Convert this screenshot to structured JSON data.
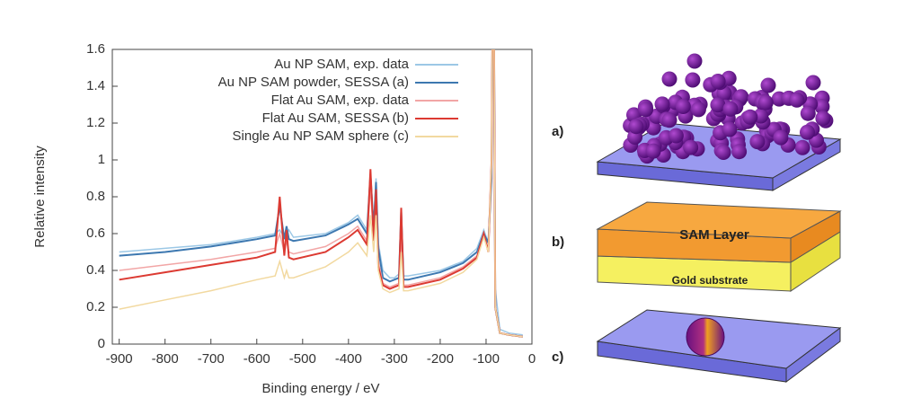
{
  "chart_data": {
    "type": "line",
    "xlabel": "Binding energy / eV",
    "ylabel": "Relative intensity",
    "x": [
      -900,
      -800,
      -700,
      -600,
      -560,
      -550,
      -540,
      -535,
      -530,
      -520,
      -450,
      -400,
      -380,
      -360,
      -352,
      -345,
      -340,
      -335,
      -325,
      -310,
      -300,
      -290,
      -285,
      -280,
      -270,
      -200,
      -150,
      -120,
      -105,
      -95,
      -88,
      -84,
      -80,
      -70,
      -50,
      -20
    ],
    "series": [
      {
        "name": "Au NP SAM, exp. data",
        "color": "#9cc8e6",
        "values": [
          0.5,
          0.52,
          0.54,
          0.58,
          0.6,
          0.62,
          0.58,
          0.6,
          0.62,
          0.58,
          0.6,
          0.66,
          0.7,
          0.62,
          0.85,
          0.65,
          0.9,
          0.55,
          0.4,
          0.36,
          0.36,
          0.38,
          0.5,
          0.37,
          0.37,
          0.4,
          0.45,
          0.52,
          0.62,
          0.55,
          1.0,
          2.0,
          0.3,
          0.08,
          0.06,
          0.05
        ]
      },
      {
        "name": "Au NP SAM powder, SESSA (a)",
        "color": "#3d78b0",
        "values": [
          0.48,
          0.5,
          0.53,
          0.57,
          0.59,
          0.75,
          0.57,
          0.64,
          0.57,
          0.56,
          0.59,
          0.65,
          0.68,
          0.6,
          0.92,
          0.63,
          0.88,
          0.52,
          0.36,
          0.34,
          0.35,
          0.36,
          0.72,
          0.35,
          0.35,
          0.39,
          0.44,
          0.5,
          0.6,
          0.55,
          0.9,
          2.5,
          0.2,
          0.06,
          0.05,
          0.04
        ]
      },
      {
        "name": "Flat Au SAM, exp. data",
        "color": "#f2a6a6",
        "values": [
          0.4,
          0.43,
          0.46,
          0.5,
          0.52,
          0.6,
          0.5,
          0.56,
          0.5,
          0.49,
          0.53,
          0.6,
          0.64,
          0.56,
          0.85,
          0.58,
          0.8,
          0.45,
          0.33,
          0.31,
          0.32,
          0.33,
          0.6,
          0.32,
          0.32,
          0.36,
          0.42,
          0.48,
          0.6,
          0.5,
          1.0,
          2.5,
          0.2,
          0.06,
          0.05,
          0.04
        ]
      },
      {
        "name": "Flat Au SAM, SESSA (b)",
        "color": "#dc3a32",
        "values": [
          0.35,
          0.39,
          0.43,
          0.47,
          0.5,
          0.8,
          0.48,
          0.62,
          0.47,
          0.46,
          0.5,
          0.58,
          0.62,
          0.54,
          0.95,
          0.56,
          0.84,
          0.42,
          0.32,
          0.3,
          0.31,
          0.32,
          0.74,
          0.31,
          0.31,
          0.35,
          0.41,
          0.47,
          0.6,
          0.5,
          1.0,
          2.5,
          0.2,
          0.06,
          0.05,
          0.04
        ]
      },
      {
        "name": "Single Au NP SAM sphere (c)",
        "color": "#f2d9a0",
        "values": [
          0.19,
          0.24,
          0.29,
          0.35,
          0.37,
          0.45,
          0.36,
          0.4,
          0.36,
          0.36,
          0.42,
          0.5,
          0.55,
          0.48,
          0.7,
          0.5,
          0.7,
          0.4,
          0.3,
          0.28,
          0.29,
          0.3,
          0.5,
          0.29,
          0.29,
          0.33,
          0.39,
          0.46,
          0.58,
          0.5,
          1.0,
          2.5,
          0.2,
          0.06,
          0.05,
          0.04
        ]
      }
    ],
    "xlim": [
      -915,
      0
    ],
    "ylim": [
      0,
      1.6
    ],
    "xticks": [
      -900,
      -800,
      -700,
      -600,
      -500,
      -400,
      -300,
      -200,
      -100,
      0
    ],
    "yticks": [
      0,
      0.2,
      0.4,
      0.6,
      0.8,
      1,
      1.2,
      1.4,
      1.6
    ],
    "grid": false,
    "legend": "top-right"
  },
  "diagram": {
    "labels": [
      "a)",
      "b)",
      "c)"
    ],
    "sam_layer": "SAM Layer",
    "gold_substrate": "Gold substrate"
  }
}
